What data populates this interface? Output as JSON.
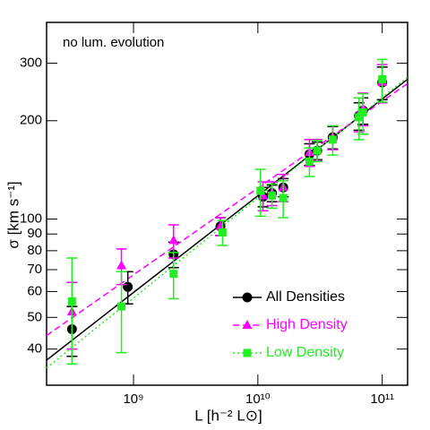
{
  "chart_data": {
    "type": "scatter",
    "annotation": "no lum. evolution",
    "x_label": "L [h⁻² L⊙]",
    "y_label": "σ [km s⁻¹]",
    "log_x": true,
    "log_y": true,
    "xlim": [
      200000000.0,
      160000000000.0
    ],
    "ylim": [
      31,
      400
    ],
    "xticks": [
      {
        "value": 1000000000.0,
        "label": "10⁹"
      },
      {
        "value": 10000000000.0,
        "label": "10¹⁰"
      },
      {
        "value": 100000000000.0,
        "label": "10¹¹"
      }
    ],
    "yticks": [
      40,
      50,
      60,
      70,
      80,
      90,
      100,
      200,
      300
    ],
    "legend": "lower right",
    "series": [
      {
        "name": "All Densities",
        "color": "#000000",
        "marker": "circle",
        "line_style": "solid",
        "x": [
          320000000.0,
          900000000.0,
          2100000000.0,
          5000000000.0,
          11000000000.0,
          13000000000.0,
          16000000000.0,
          26000000000.0,
          30000000000.0,
          40000000000.0,
          65000000000.0,
          70000000000.0,
          100000000000.0
        ],
        "values": [
          46,
          62,
          78,
          95,
          117,
          120,
          125,
          158,
          162,
          178,
          207,
          215,
          262
        ],
        "errors": [
          8,
          7,
          7,
          6,
          8,
          7,
          8,
          12,
          10,
          14,
          20,
          20,
          30
        ],
        "fit_x": [
          200000000.0,
          160000000000.0
        ],
        "fit_y": [
          37,
          268
        ]
      },
      {
        "name": "High Density",
        "color": "#ff00ff",
        "marker": "triangle",
        "line_style": "dashed",
        "x": [
          320000000.0,
          800000000.0,
          2100000000.0,
          5000000000.0,
          11000000000.0,
          13000000000.0,
          16000000000.0,
          26000000000.0,
          30000000000.0,
          40000000000.0,
          65000000000.0,
          70000000000.0,
          100000000000.0
        ],
        "values": [
          52,
          72,
          86,
          95,
          118,
          120,
          125,
          160,
          163,
          178,
          210,
          218,
          262
        ],
        "errors": [
          12,
          9,
          10,
          6,
          12,
          10,
          12,
          15,
          12,
          15,
          25,
          25,
          35
        ],
        "fit_x": [
          200000000.0,
          160000000000.0
        ],
        "fit_y": [
          44,
          260
        ]
      },
      {
        "name": "Low Density",
        "color": "#22ee22",
        "marker": "square",
        "line_style": "dotted",
        "x": [
          320000000.0,
          800000000.0,
          2100000000.0,
          5200000000.0,
          10500000000.0,
          13000000000.0,
          16000000000.0,
          26000000000.0,
          30000000000.0,
          40000000000.0,
          65000000000.0,
          70000000000.0,
          100000000000.0
        ],
        "values": [
          56,
          54,
          68,
          91,
          122,
          118,
          116,
          150,
          162,
          175,
          205,
          212,
          268
        ],
        "errors": [
          20,
          15,
          11,
          8,
          20,
          10,
          15,
          15,
          12,
          18,
          30,
          30,
          40
        ],
        "fit_x": [
          200000000.0,
          160000000000.0
        ],
        "fit_y": [
          35,
          272
        ]
      }
    ]
  }
}
